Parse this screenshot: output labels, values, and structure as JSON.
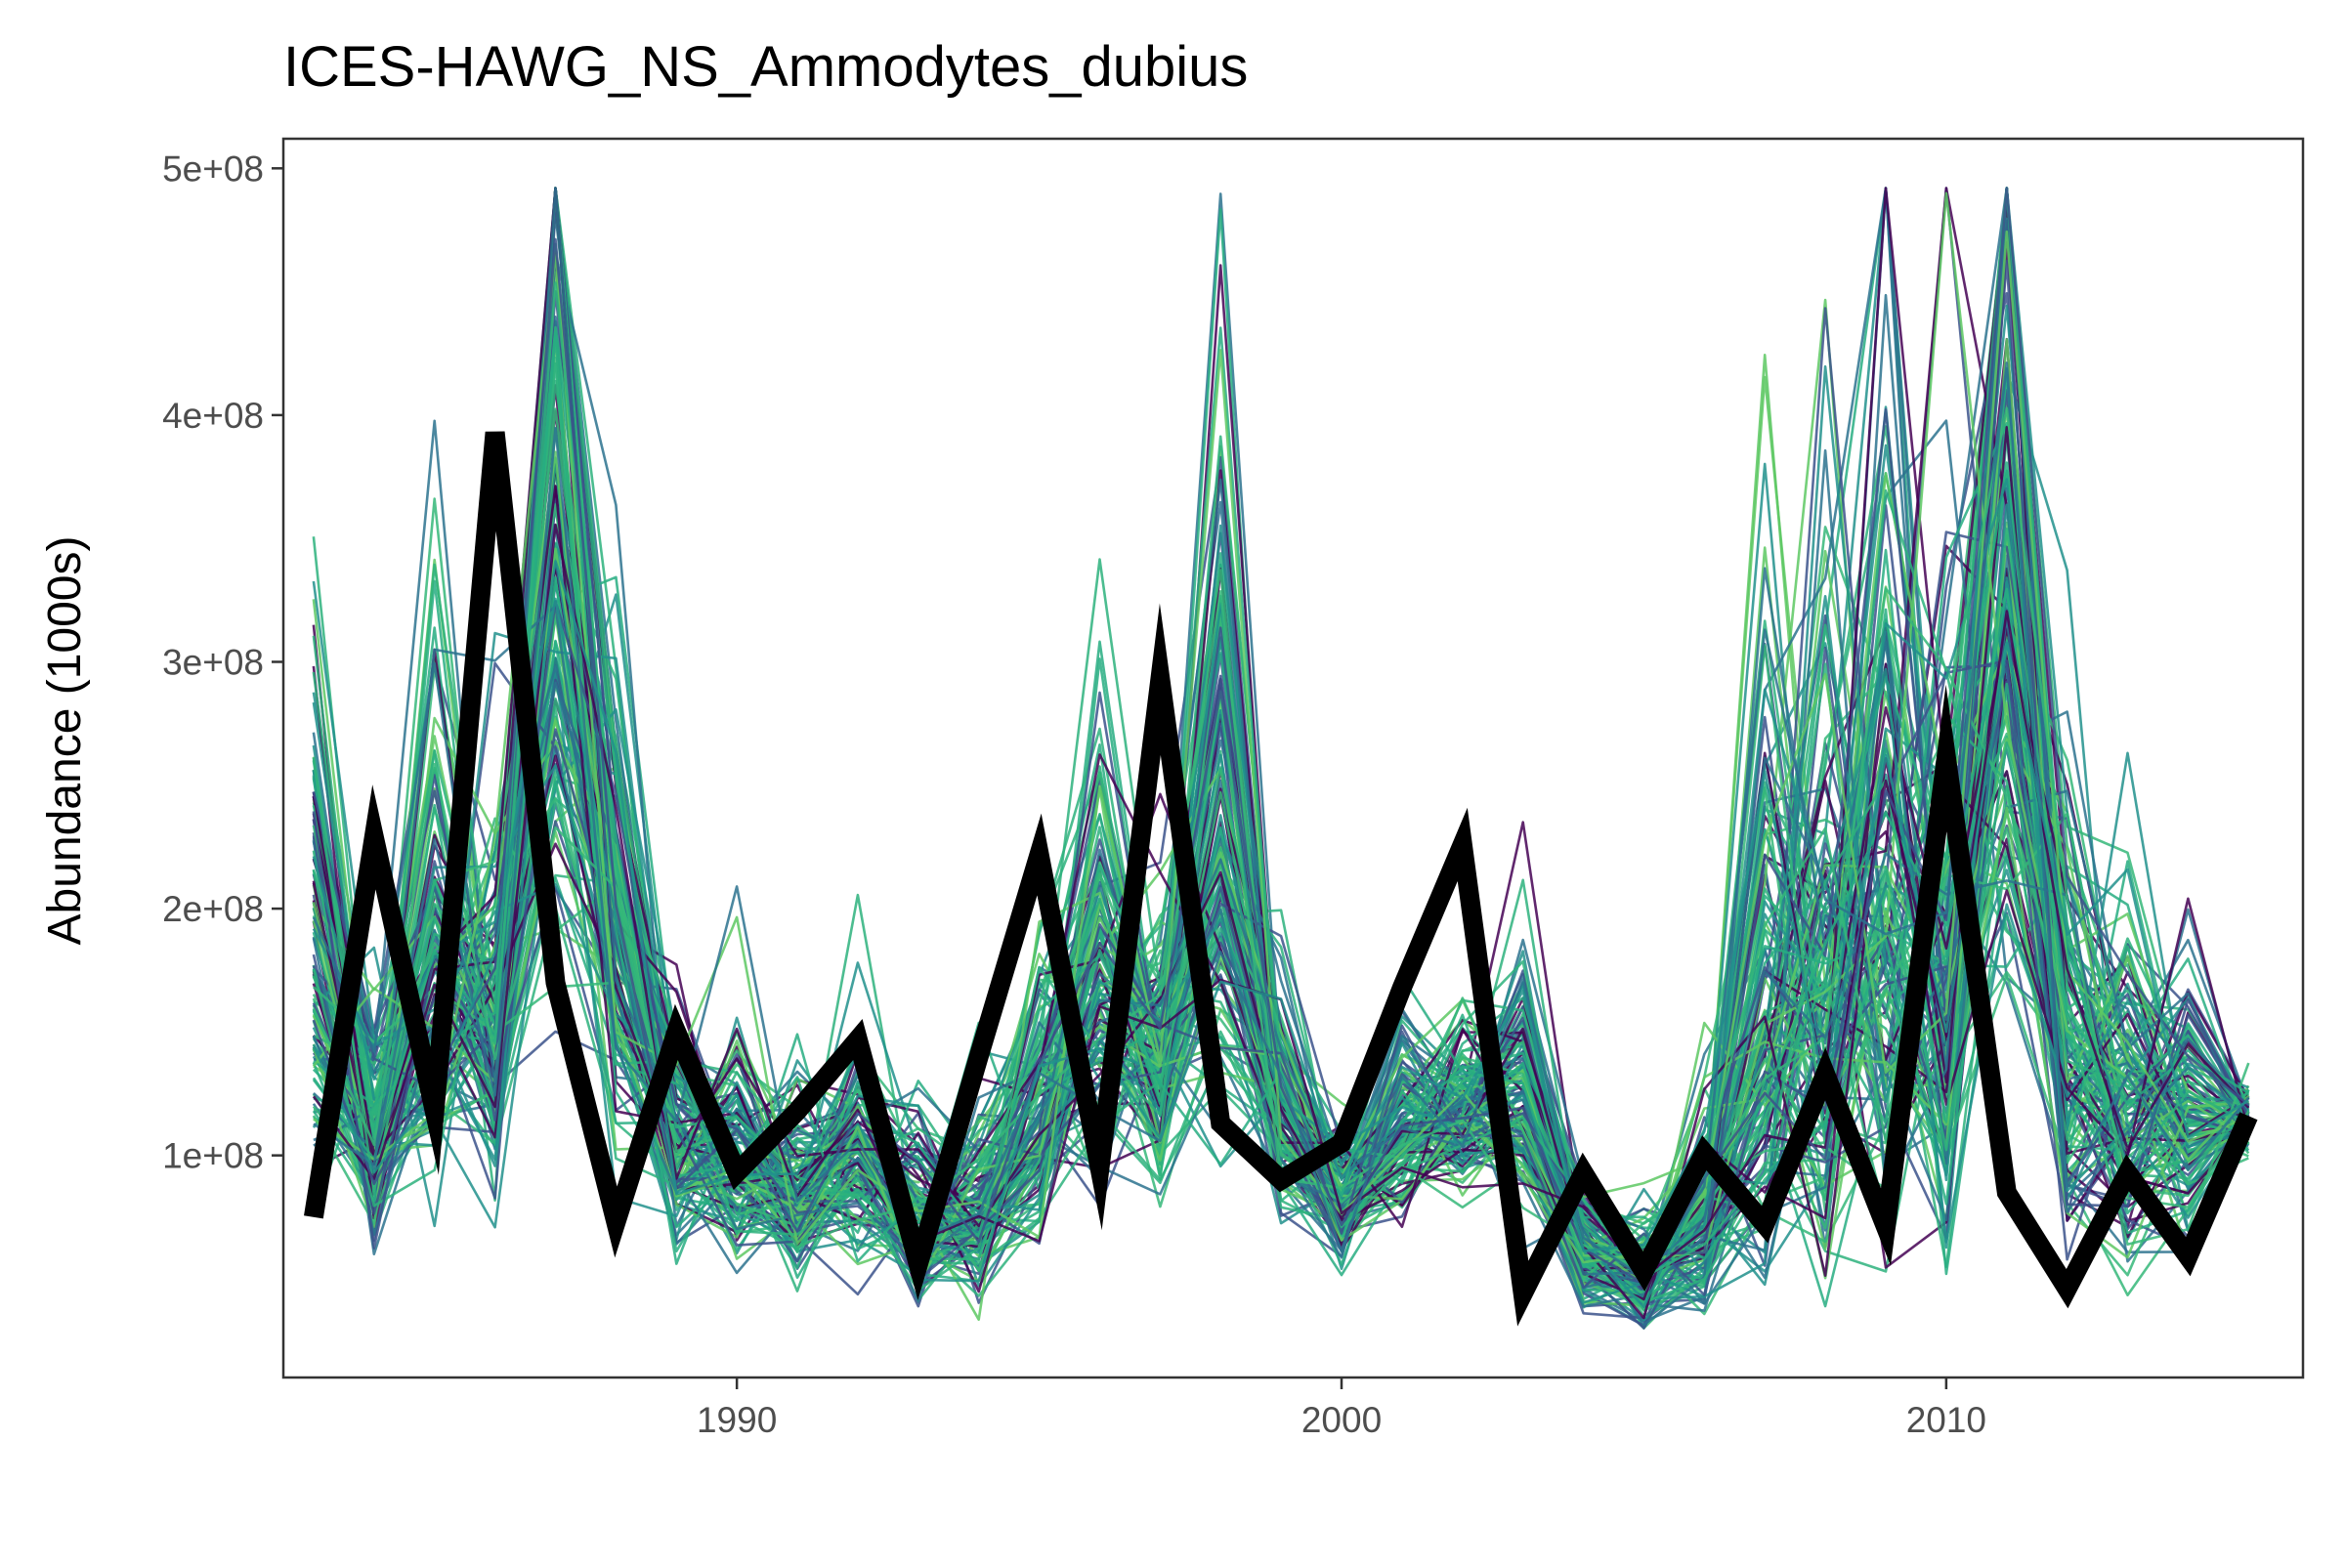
{
  "chart_data": {
    "type": "line",
    "title": "ICES-HAWG_NS_Ammodytes_dubius",
    "xlabel": "",
    "ylabel": "Abundance (1000s)",
    "xlim": [
      1982.5,
      2015.9
    ],
    "ylim": [
      10000000,
      512000000
    ],
    "x_ticks": [
      1990,
      2000,
      2010
    ],
    "x_tick_labels": [
      "1990",
      "2000",
      "2010"
    ],
    "y_ticks": [
      100000000,
      200000000,
      300000000,
      400000000,
      500000000
    ],
    "y_tick_labels": [
      "1e+08",
      "2e+08",
      "3e+08",
      "4e+08",
      "5e+08"
    ],
    "grid": false,
    "legend": "none",
    "series": [
      {
        "color": "#000000",
        "x": [
          1983,
          1984,
          1985,
          1986,
          1987,
          1988,
          1989,
          1990,
          1991,
          1992,
          1993,
          1994,
          1995,
          1996,
          1997,
          1998,
          1999,
          2000,
          2001,
          2002,
          2003,
          2004,
          2005,
          2006,
          2007,
          2008,
          2009,
          2010,
          2011,
          2012,
          2013,
          2014,
          2015
        ],
        "y": [
          75000000,
          229000000,
          118000000,
          393000000,
          170000000,
          73000000,
          150000000,
          93000000,
          118000000,
          147000000,
          56000000,
          140000000,
          222000000,
          95000000,
          293000000,
          113000000,
          90000000,
          105000000,
          168000000,
          226000000,
          44000000,
          93000000,
          53000000,
          101000000,
          72000000,
          133000000,
          71000000,
          261000000,
          85000000,
          46000000,
          93000000,
          59000000,
          116000000
        ]
      }
    ],
    "simulated_series": {
      "count": 140,
      "palette": [
        "#440154",
        "#3b528b",
        "#2c728e",
        "#21908c",
        "#27ad81",
        "#5dc863",
        "#2db27d",
        "#35b779"
      ],
      "x": [
        1983,
        1984,
        1985,
        1986,
        1987,
        1988,
        1989,
        1990,
        1991,
        1992,
        1993,
        1994,
        1995,
        1996,
        1997,
        1998,
        1999,
        2000,
        2001,
        2002,
        2003,
        2004,
        2005,
        2006,
        2007,
        2008,
        2009,
        2010,
        2011,
        2012,
        2013,
        2014,
        2015
      ],
      "median": [
        190000000,
        105000000,
        175000000,
        140000000,
        330000000,
        190000000,
        105000000,
        95000000,
        80000000,
        100000000,
        75000000,
        78000000,
        115000000,
        165000000,
        135000000,
        235000000,
        115000000,
        80000000,
        110000000,
        120000000,
        125000000,
        60000000,
        50000000,
        70000000,
        145000000,
        160000000,
        195000000,
        160000000,
        330000000,
        130000000,
        120000000,
        115000000,
        115000000
      ],
      "spread": [
        0.3,
        0.25,
        0.35,
        0.28,
        0.3,
        0.25,
        0.22,
        0.22,
        0.22,
        0.22,
        0.25,
        0.25,
        0.25,
        0.25,
        0.22,
        0.3,
        0.2,
        0.15,
        0.18,
        0.15,
        0.2,
        0.2,
        0.25,
        0.3,
        0.45,
        0.45,
        0.45,
        0.45,
        0.3,
        0.35,
        0.3,
        0.25,
        0.05
      ]
    }
  }
}
